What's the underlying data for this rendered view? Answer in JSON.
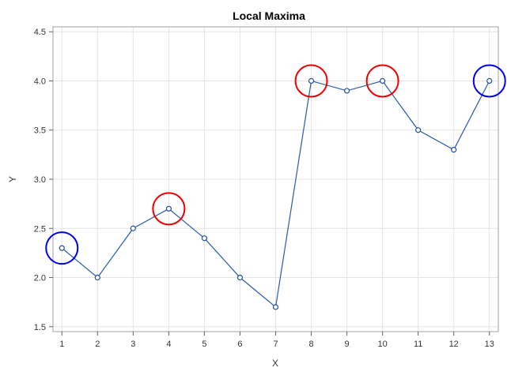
{
  "chart_data": {
    "type": "line",
    "title": "Local Maxima",
    "xlabel": "X",
    "ylabel": "Y",
    "xlim": [
      0.75,
      13.25
    ],
    "ylim": [
      1.45,
      4.55
    ],
    "xticks": [
      1,
      2,
      3,
      4,
      5,
      6,
      7,
      8,
      9,
      10,
      11,
      12,
      13
    ],
    "yticks": [
      "1.5",
      "2.0",
      "2.5",
      "3.0",
      "3.5",
      "4.0",
      "4.5"
    ],
    "grid": true,
    "legend": "none",
    "series": [
      {
        "color": "#2a5aa8",
        "x": [
          1,
          2,
          3,
          4,
          5,
          6,
          7,
          8,
          9,
          10,
          11,
          12,
          13
        ],
        "y": [
          2.3,
          2.0,
          2.5,
          2.7,
          2.4,
          2.0,
          1.7,
          4.0,
          3.9,
          4.0,
          3.5,
          3.3,
          4.0
        ]
      }
    ],
    "highlights": [
      {
        "x": 1,
        "y": 2.3,
        "color": "#0000ee",
        "kind": "endpoint"
      },
      {
        "x": 4,
        "y": 2.7,
        "color": "#ee0000",
        "kind": "interior"
      },
      {
        "x": 8,
        "y": 4.0,
        "color": "#ee0000",
        "kind": "interior"
      },
      {
        "x": 10,
        "y": 4.0,
        "color": "#ee0000",
        "kind": "interior"
      },
      {
        "x": 13,
        "y": 4.0,
        "color": "#0000ee",
        "kind": "endpoint"
      }
    ]
  }
}
